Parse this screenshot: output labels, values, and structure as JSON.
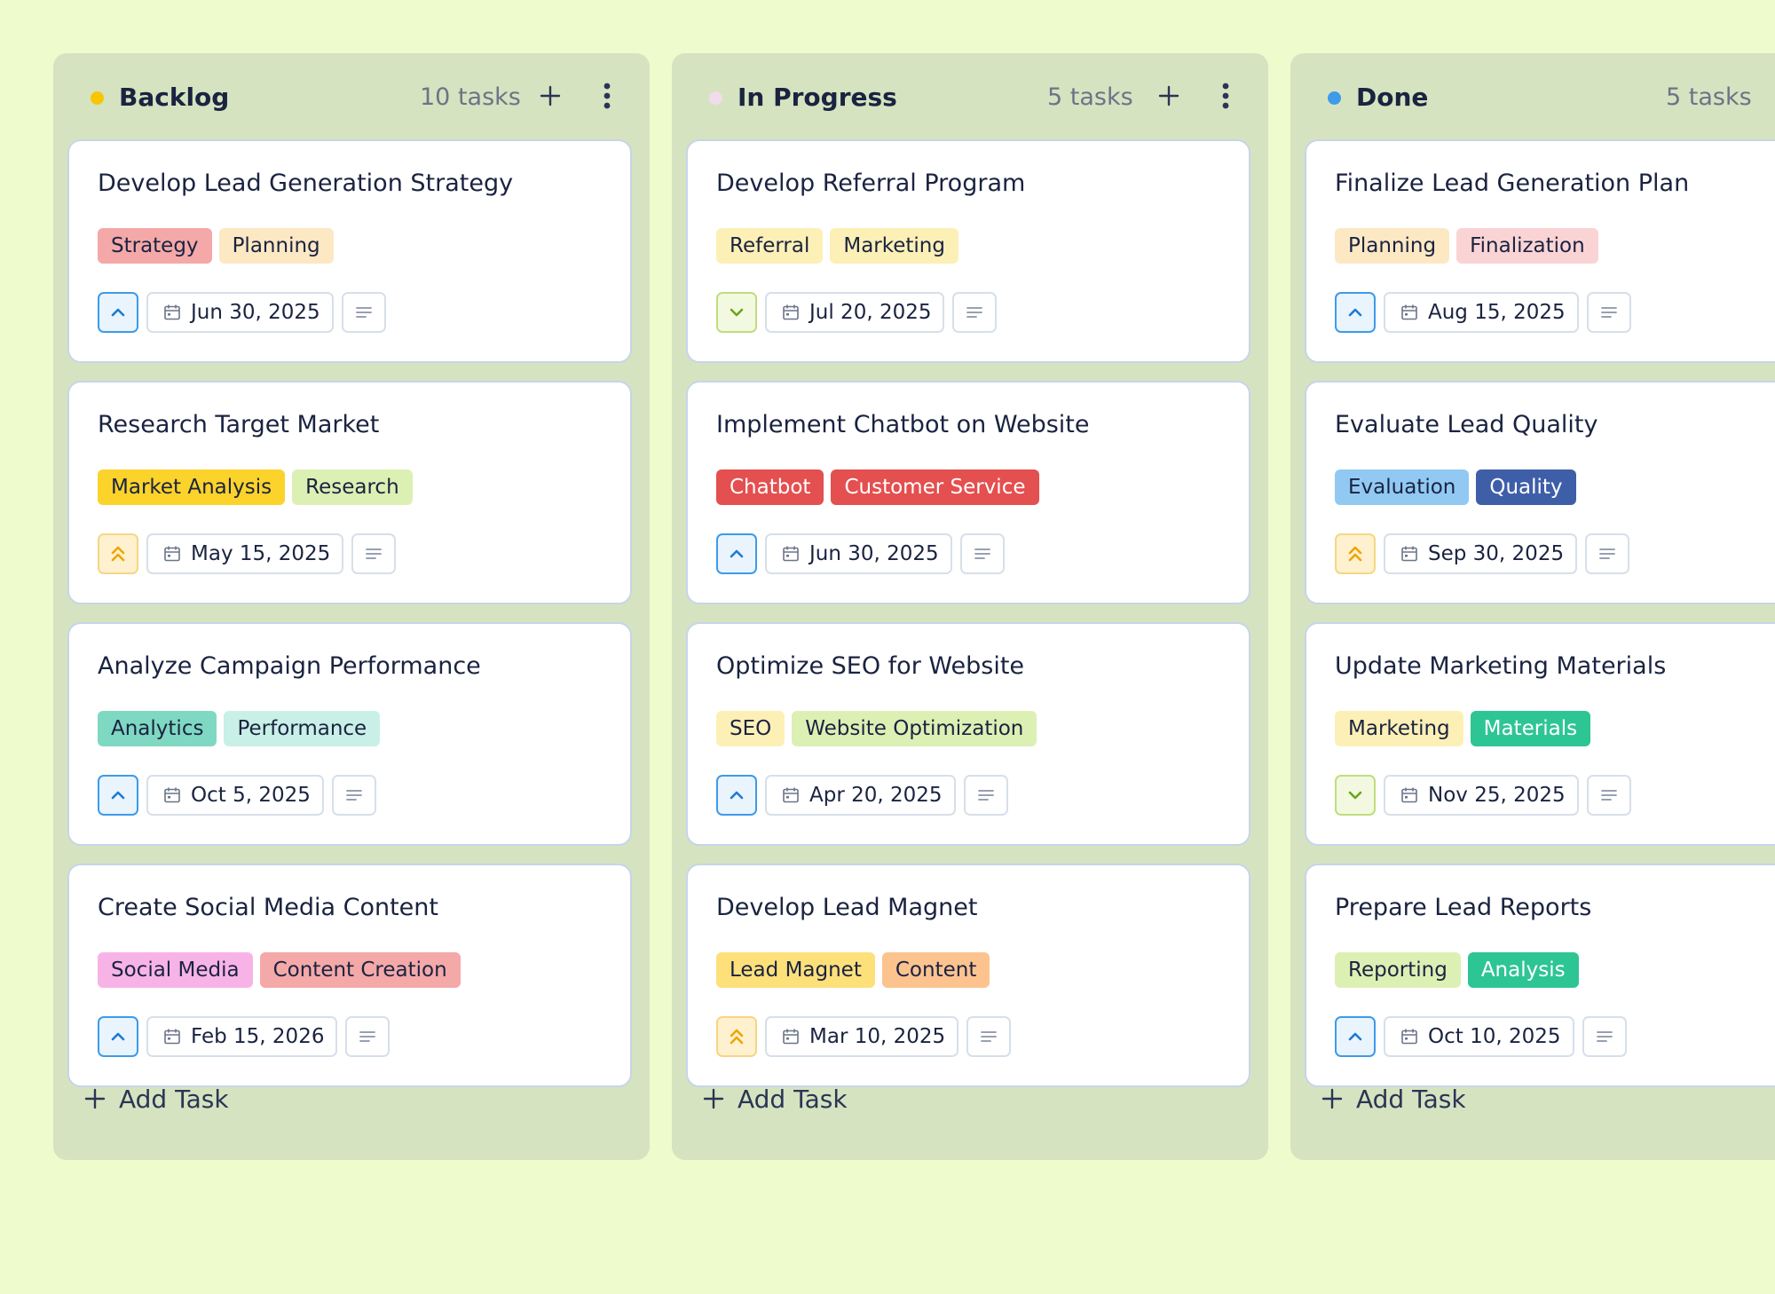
{
  "columns": [
    {
      "title": "Backlog",
      "count": "10 tasks",
      "dot_color": "#f7c600",
      "add_task_label": "Add Task",
      "cards": [
        {
          "title": "Develop Lead Generation Strategy",
          "tags": [
            {
              "label": "Strategy",
              "bg": "#f4a8a8"
            },
            {
              "label": "Planning",
              "bg": "#fde8c4"
            }
          ],
          "priority": "high",
          "date": "Jun 30, 2025"
        },
        {
          "title": "Research Target Market",
          "tags": [
            {
              "label": "Market Analysis",
              "bg": "#fcd32a"
            },
            {
              "label": "Research",
              "bg": "#dcf0b4"
            }
          ],
          "priority": "urgent",
          "date": "May 15, 2025"
        },
        {
          "title": "Analyze Campaign Performance",
          "tags": [
            {
              "label": "Analytics",
              "bg": "#7fd8c2"
            },
            {
              "label": "Performance",
              "bg": "#c9f0e6"
            }
          ],
          "priority": "high",
          "date": "Oct 5, 2025"
        },
        {
          "title": "Create Social Media Content",
          "tags": [
            {
              "label": "Social Media",
              "bg": "#f8b3e6"
            },
            {
              "label": "Content Creation",
              "bg": "#f4a8a8"
            }
          ],
          "priority": "high",
          "date": "Feb 15, 2026"
        }
      ]
    },
    {
      "title": "In Progress",
      "count": "5 tasks",
      "dot_color": "#f1dcee",
      "add_task_label": "Add Task",
      "cards": [
        {
          "title": "Develop Referral Program",
          "tags": [
            {
              "label": "Referral",
              "bg": "#fdf0b6"
            },
            {
              "label": "Marketing",
              "bg": "#fdf0b6"
            }
          ],
          "priority": "low",
          "date": "Jul 20, 2025"
        },
        {
          "title": "Implement Chatbot on Website",
          "tags": [
            {
              "label": "Chatbot",
              "bg": "#e44f4f",
              "fg": "#ffffff"
            },
            {
              "label": "Customer Service",
              "bg": "#e44f4f",
              "fg": "#ffffff"
            }
          ],
          "priority": "high",
          "date": "Jun 30, 2025"
        },
        {
          "title": "Optimize SEO for Website",
          "tags": [
            {
              "label": "SEO",
              "bg": "#fdf0b6"
            },
            {
              "label": "Website Optimization",
              "bg": "#dcf0b4"
            }
          ],
          "priority": "high",
          "date": "Apr 20, 2025"
        },
        {
          "title": "Develop Lead Magnet",
          "tags": [
            {
              "label": "Lead Magnet",
              "bg": "#fde07a"
            },
            {
              "label": "Content",
              "bg": "#fcc38f"
            }
          ],
          "priority": "urgent",
          "date": "Mar 10, 2025"
        }
      ]
    },
    {
      "title": "Done",
      "count": "5 tasks",
      "dot_color": "#3d9be9",
      "add_task_label": "Add Task",
      "cards": [
        {
          "title": "Finalize Lead Generation Plan",
          "tags": [
            {
              "label": "Planning",
              "bg": "#fde8c4"
            },
            {
              "label": "Finalization",
              "bg": "#fad4d4"
            }
          ],
          "priority": "high",
          "date": "Aug 15, 2025"
        },
        {
          "title": "Evaluate Lead Quality",
          "tags": [
            {
              "label": "Evaluation",
              "bg": "#92c9f3"
            },
            {
              "label": "Quality",
              "bg": "#3f5ea8",
              "fg": "#ffffff"
            }
          ],
          "priority": "urgent",
          "date": "Sep 30, 2025"
        },
        {
          "title": "Update Marketing Materials",
          "tags": [
            {
              "label": "Marketing",
              "bg": "#fdf0b6"
            },
            {
              "label": "Materials",
              "bg": "#2ec594",
              "fg": "#ffffff"
            }
          ],
          "priority": "low",
          "date": "Nov 25, 2025"
        },
        {
          "title": "Prepare Lead Reports",
          "tags": [
            {
              "label": "Reporting",
              "bg": "#dcf0b4"
            },
            {
              "label": "Analysis",
              "bg": "#2ec594",
              "fg": "#ffffff"
            }
          ],
          "priority": "high",
          "date": "Oct 10, 2025"
        }
      ]
    }
  ]
}
